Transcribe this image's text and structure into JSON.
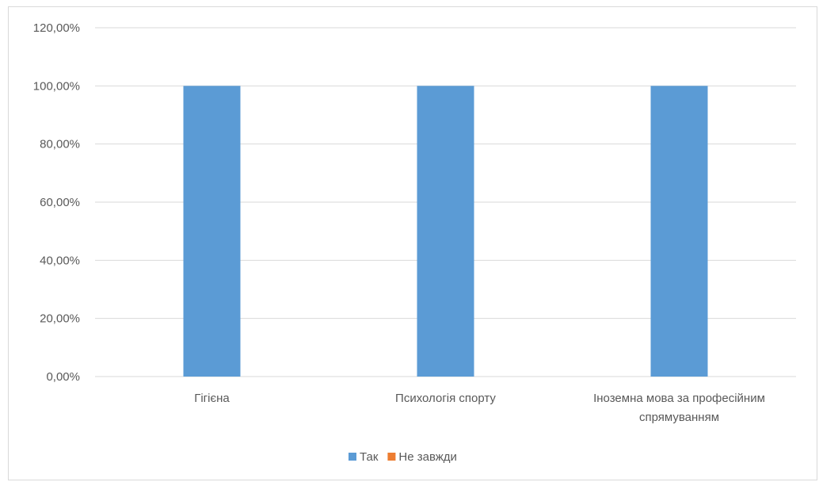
{
  "chart_data": {
    "type": "bar",
    "categories": [
      [
        "Гігієна"
      ],
      [
        "Психологія спорту"
      ],
      [
        "Іноземна мова за професійним",
        "спрямуванням"
      ]
    ],
    "series": [
      {
        "name": "Так",
        "values": [
          100,
          100,
          100
        ],
        "color": "#5b9bd5"
      },
      {
        "name": "Не завжди",
        "values": [
          0,
          0,
          0
        ],
        "color": "#ed7d31"
      }
    ],
    "y_ticks": [
      "0,00%",
      "20,00%",
      "40,00%",
      "60,00%",
      "80,00%",
      "100,00%",
      "120,00%"
    ],
    "ylim": [
      0,
      120
    ],
    "grid": true,
    "legend_position": "bottom"
  }
}
